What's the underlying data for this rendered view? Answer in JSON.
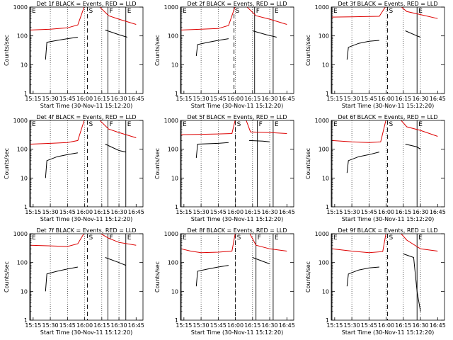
{
  "chart_data": [
    {
      "type": "line",
      "title": "Det 1f BLACK = Events, RED = LLD",
      "xlabel": "Start Time (30-Nov-11 15:12:20)",
      "ylabel": "Counts/sec",
      "xlim": [
        15.2,
        16.85
      ],
      "ylim": [
        1,
        1000
      ],
      "yscale": "log",
      "xticks": [
        "15:15",
        "15:30",
        "15:45",
        "16:00",
        "16:15",
        "16:30",
        "16:45"
      ],
      "yticks": [
        "1",
        "10",
        "100",
        "1000"
      ],
      "grid": "dotted-vertical",
      "markers": [
        {
          "label": "E",
          "x": 15.21
        },
        {
          "label": "S",
          "x": 16.04
        },
        {
          "label": "F",
          "x": 16.34
        },
        {
          "label": "E",
          "x": 16.6
        }
      ],
      "series": [
        {
          "name": "Events",
          "color": "#000000",
          "x": [
            15.43,
            15.45,
            15.6,
            15.75,
            15.9
          ],
          "y": [
            15,
            60,
            70,
            80,
            90
          ]
        },
        {
          "name": "LLD",
          "color": "#dd0000",
          "x": [
            15.21,
            15.5,
            15.75,
            15.9,
            16.0,
            16.2,
            16.35,
            16.5,
            16.75
          ],
          "y": [
            160,
            170,
            190,
            240,
            1200,
            1200,
            500,
            380,
            250
          ]
        },
        {
          "name": "Events",
          "color": "#000000",
          "x": [
            16.3,
            16.5,
            16.62
          ],
          "y": [
            160,
            110,
            90
          ]
        }
      ]
    },
    {
      "type": "line",
      "title": "Det 2f BLACK = Events, RED = LLD",
      "xlabel": "Start Time (30-Nov-11 15:12:20)",
      "ylabel": "Counts/sec",
      "xlim": [
        15.2,
        16.85
      ],
      "ylim": [
        1,
        1000
      ],
      "yscale": "log",
      "xticks": [
        "15:15",
        "15:30",
        "15:45",
        "16:00",
        "16:15",
        "16:30",
        "16:45"
      ],
      "yticks": [
        "1",
        "10",
        "100",
        "1000"
      ],
      "grid": "dotted-vertical",
      "markers": [
        {
          "label": "E",
          "x": 15.21
        },
        {
          "label": "S",
          "x": 15.98
        },
        {
          "label": "F",
          "x": 16.28
        },
        {
          "label": "E",
          "x": 16.55
        }
      ],
      "series": [
        {
          "name": "Events",
          "color": "#000000",
          "x": [
            15.43,
            15.45,
            15.6,
            15.75,
            15.9
          ],
          "y": [
            20,
            50,
            60,
            70,
            80
          ]
        },
        {
          "name": "LLD",
          "color": "#dd0000",
          "x": [
            15.21,
            15.5,
            15.75,
            15.9,
            16.0,
            16.15,
            16.3,
            16.5,
            16.75
          ],
          "y": [
            160,
            170,
            180,
            230,
            1200,
            1200,
            500,
            380,
            250
          ]
        },
        {
          "name": "Events",
          "color": "#000000",
          "x": [
            16.25,
            16.45,
            16.6
          ],
          "y": [
            150,
            110,
            90
          ]
        }
      ]
    },
    {
      "type": "line",
      "title": "Det 3f BLACK = Events, RED = LLD",
      "xlabel": "Start Time (30-Nov-11 15:12:20)",
      "ylabel": "Counts/sec",
      "xlim": [
        15.2,
        16.85
      ],
      "ylim": [
        1,
        1000
      ],
      "yscale": "log",
      "xticks": [
        "15:15",
        "15:30",
        "15:45",
        "16:00",
        "16:15",
        "16:30",
        "16:45"
      ],
      "yticks": [
        "1",
        "10",
        "100",
        "1000"
      ],
      "grid": "dotted-vertical",
      "markers": [
        {
          "label": "E",
          "x": 15.21
        },
        {
          "label": "S",
          "x": 16.02
        },
        {
          "label": "E",
          "x": 16.45
        }
      ],
      "series": [
        {
          "name": "Events",
          "color": "#000000",
          "x": [
            15.43,
            15.45,
            15.6,
            15.75,
            15.9
          ],
          "y": [
            15,
            40,
            55,
            65,
            70
          ]
        },
        {
          "name": "LLD",
          "color": "#dd0000",
          "x": [
            15.21,
            15.5,
            15.75,
            15.9,
            16.0,
            16.2,
            16.3,
            16.5,
            16.75
          ],
          "y": [
            450,
            460,
            470,
            480,
            1200,
            1200,
            700,
            550,
            400
          ]
        },
        {
          "name": "Events",
          "color": "#000000",
          "x": [
            16.28,
            16.45,
            16.5
          ],
          "y": [
            150,
            100,
            90
          ]
        }
      ]
    },
    {
      "type": "line",
      "title": "Det 4f BLACK = Events, RED = LLD",
      "xlabel": "Start Time (30-Nov-11 15:12:20)",
      "ylabel": "Counts/sec",
      "xlim": [
        15.2,
        16.85
      ],
      "ylim": [
        1,
        1000
      ],
      "yscale": "log",
      "xticks": [
        "15:15",
        "15:30",
        "15:45",
        "16:00",
        "16:15",
        "16:30",
        "16:45"
      ],
      "yticks": [
        "1",
        "10",
        "100",
        "1000"
      ],
      "grid": "dotted-vertical",
      "markers": [
        {
          "label": "E",
          "x": 15.21
        },
        {
          "label": "S",
          "x": 16.04
        },
        {
          "label": "F",
          "x": 16.34
        },
        {
          "label": "E",
          "x": 16.6
        }
      ],
      "series": [
        {
          "name": "Events",
          "color": "#000000",
          "x": [
            15.43,
            15.45,
            15.6,
            15.75,
            15.9
          ],
          "y": [
            10,
            40,
            55,
            65,
            75
          ]
        },
        {
          "name": "LLD",
          "color": "#dd0000",
          "x": [
            15.21,
            15.5,
            15.75,
            15.9,
            16.0,
            16.2,
            16.35,
            16.5,
            16.75
          ],
          "y": [
            150,
            160,
            170,
            200,
            1200,
            1200,
            500,
            380,
            250
          ]
        },
        {
          "name": "Events",
          "color": "#000000",
          "x": [
            16.3,
            16.5,
            16.6
          ],
          "y": [
            150,
            90,
            80
          ]
        }
      ]
    },
    {
      "type": "line",
      "title": "Det 5f BLACK = Events, RED = LLD",
      "xlabel": "Start Time (30-Nov-11 15:12:20)",
      "ylabel": "Counts/sec",
      "xlim": [
        15.2,
        16.85
      ],
      "ylim": [
        1,
        1000
      ],
      "yscale": "log",
      "xticks": [
        "15:15",
        "15:30",
        "15:45",
        "16:00",
        "16:15",
        "16:30",
        "16:45"
      ],
      "yticks": [
        "1",
        "10",
        "100",
        "1000"
      ],
      "grid": "dotted-vertical",
      "markers": [
        {
          "label": "E",
          "x": 15.21
        },
        {
          "label": "S",
          "x": 16.0
        },
        {
          "label": "F",
          "x": 16.32
        },
        {
          "label": "E",
          "x": 16.55
        }
      ],
      "series": [
        {
          "name": "Events",
          "color": "#000000",
          "x": [
            15.43,
            15.45,
            15.75,
            15.9
          ],
          "y": [
            50,
            150,
            160,
            170
          ]
        },
        {
          "name": "LLD",
          "color": "#dd0000",
          "x": [
            15.21,
            15.5,
            15.75,
            15.95,
            16.0,
            16.15,
            16.22,
            16.5,
            16.75
          ],
          "y": [
            320,
            330,
            340,
            350,
            1200,
            1200,
            400,
            380,
            350
          ]
        },
        {
          "name": "Events",
          "color": "#000000",
          "x": [
            16.2,
            16.4,
            16.5
          ],
          "y": [
            200,
            190,
            180
          ]
        }
      ]
    },
    {
      "type": "line",
      "title": "Det 6f BLACK = Events, RED = LLD",
      "xlabel": "Start Time (30-Nov-11 15:12:20)",
      "ylabel": "Counts/sec",
      "xlim": [
        15.2,
        16.85
      ],
      "ylim": [
        1,
        1000
      ],
      "yscale": "log",
      "xticks": [
        "15:15",
        "15:30",
        "15:45",
        "16:00",
        "16:15",
        "16:30",
        "16:45"
      ],
      "yticks": [
        "1",
        "10",
        "100",
        "1000"
      ],
      "grid": "dotted-vertical",
      "markers": [
        {
          "label": "E",
          "x": 15.21
        },
        {
          "label": "S",
          "x": 16.02
        },
        {
          "label": "E",
          "x": 16.45
        }
      ],
      "series": [
        {
          "name": "Events",
          "color": "#000000",
          "x": [
            15.43,
            15.45,
            15.6,
            15.75,
            15.9
          ],
          "y": [
            15,
            40,
            55,
            65,
            80
          ]
        },
        {
          "name": "LLD",
          "color": "#dd0000",
          "x": [
            15.21,
            15.5,
            15.75,
            15.92,
            16.0,
            16.2,
            16.3,
            16.5,
            16.75
          ],
          "y": [
            200,
            180,
            170,
            180,
            1200,
            1200,
            600,
            450,
            280
          ]
        },
        {
          "name": "Events",
          "color": "#000000",
          "x": [
            16.28,
            16.45,
            16.5
          ],
          "y": [
            150,
            120,
            100
          ]
        }
      ]
    },
    {
      "type": "line",
      "title": "Det 7f BLACK = Events, RED = LLD",
      "xlabel": "Start Time (30-Nov-11 15:12:20)",
      "ylabel": "Counts/sec",
      "xlim": [
        15.2,
        16.85
      ],
      "ylim": [
        1,
        1000
      ],
      "yscale": "log",
      "xticks": [
        "15:15",
        "15:30",
        "15:45",
        "16:00",
        "16:15",
        "16:30",
        "16:45"
      ],
      "yticks": [
        "1",
        "10",
        "100",
        "1000"
      ],
      "grid": "dotted-vertical",
      "markers": [
        {
          "label": "E",
          "x": 15.21
        },
        {
          "label": "S",
          "x": 16.04
        },
        {
          "label": "F",
          "x": 16.34
        },
        {
          "label": "E",
          "x": 16.6
        }
      ],
      "series": [
        {
          "name": "Events",
          "color": "#000000",
          "x": [
            15.43,
            15.45,
            15.6,
            15.75,
            15.9
          ],
          "y": [
            10,
            40,
            50,
            60,
            70
          ]
        },
        {
          "name": "LLD",
          "color": "#dd0000",
          "x": [
            15.21,
            15.5,
            15.75,
            15.9,
            16.0,
            16.2,
            16.35,
            16.5,
            16.75
          ],
          "y": [
            400,
            380,
            360,
            450,
            1200,
            1200,
            700,
            500,
            400
          ]
        },
        {
          "name": "Events",
          "color": "#000000",
          "x": [
            16.3,
            16.5,
            16.6
          ],
          "y": [
            150,
            100,
            80
          ]
        }
      ]
    },
    {
      "type": "line",
      "title": "Det 8f BLACK = Events, RED = LLD",
      "xlabel": "Start Time (30-Nov-11 15:12:20)",
      "ylabel": "Counts/sec",
      "xlim": [
        15.2,
        16.85
      ],
      "ylim": [
        1,
        1000
      ],
      "yscale": "log",
      "xticks": [
        "15:15",
        "15:30",
        "15:45",
        "16:00",
        "16:15",
        "16:30",
        "16:45"
      ],
      "yticks": [
        "1",
        "10",
        "100",
        "1000"
      ],
      "grid": "dotted-vertical",
      "markers": [
        {
          "label": "E",
          "x": 15.21
        },
        {
          "label": "S",
          "x": 16.0
        },
        {
          "label": "F",
          "x": 16.3
        },
        {
          "label": "E",
          "x": 16.55
        }
      ],
      "series": [
        {
          "name": "Events",
          "color": "#000000",
          "x": [
            15.43,
            15.45,
            15.6,
            15.75,
            15.9
          ],
          "y": [
            15,
            50,
            60,
            70,
            80
          ]
        },
        {
          "name": "LLD",
          "color": "#dd0000",
          "x": [
            15.21,
            15.35,
            15.5,
            15.75,
            15.95,
            16.0,
            16.2,
            16.3,
            16.5,
            16.75
          ],
          "y": [
            300,
            250,
            220,
            230,
            250,
            1200,
            1200,
            400,
            300,
            250
          ]
        },
        {
          "name": "Events",
          "color": "#000000",
          "x": [
            16.25,
            16.4,
            16.5
          ],
          "y": [
            150,
            110,
            90
          ]
        }
      ]
    },
    {
      "type": "line",
      "title": "Det 9f BLACK = Events, RED = LLD",
      "xlabel": "Start Time (30-Nov-11 15:12:20)",
      "ylabel": "Counts/sec",
      "xlim": [
        15.2,
        16.85
      ],
      "ylim": [
        1,
        1000
      ],
      "yscale": "log",
      "xticks": [
        "15:15",
        "15:30",
        "15:45",
        "16:00",
        "16:15",
        "16:30",
        "16:45"
      ],
      "yticks": [
        "1",
        "10",
        "100",
        "1000"
      ],
      "grid": "dotted-vertical",
      "markers": [
        {
          "label": "E",
          "x": 15.21
        },
        {
          "label": "S",
          "x": 16.02
        },
        {
          "label": "E",
          "x": 16.45
        }
      ],
      "series": [
        {
          "name": "Events",
          "color": "#000000",
          "x": [
            15.43,
            15.45,
            15.6,
            15.75,
            15.9
          ],
          "y": [
            15,
            40,
            55,
            65,
            70
          ]
        },
        {
          "name": "LLD",
          "color": "#dd0000",
          "x": [
            15.21,
            15.5,
            15.75,
            15.95,
            16.0,
            16.2,
            16.3,
            16.5,
            16.75
          ],
          "y": [
            300,
            250,
            220,
            240,
            1200,
            1200,
            600,
            300,
            250
          ]
        },
        {
          "name": "Events",
          "color": "#000000",
          "x": [
            16.25,
            16.4,
            16.45,
            16.5
          ],
          "y": [
            200,
            150,
            10,
            2
          ]
        }
      ]
    }
  ]
}
